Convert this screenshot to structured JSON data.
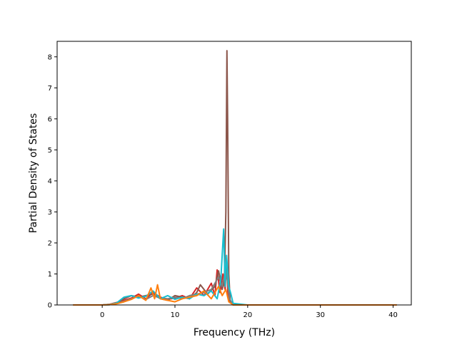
{
  "chart_data": {
    "type": "line",
    "title": "",
    "xlabel": "Frequency (THz)",
    "ylabel": "Partial Density of States",
    "xlim": [
      -6.2,
      42.5
    ],
    "ylim": [
      0,
      8.5
    ],
    "xticks": [
      0,
      10,
      20,
      30,
      40
    ],
    "yticks": [
      0,
      1,
      2,
      3,
      4,
      5,
      6,
      7,
      8
    ],
    "grid": false,
    "legend": "none",
    "series": [
      {
        "color": "#d62728",
        "x": [
          -4.0,
          0.0,
          1.0,
          2.0,
          3.0,
          4.0,
          5.0,
          6.0,
          7.0,
          8.0,
          9.0,
          10.0,
          11.0,
          12.0,
          13.0,
          14.0,
          15.0,
          15.5,
          15.8,
          16.2,
          16.6,
          16.9,
          17.1,
          17.3,
          17.6,
          18.0,
          20.0,
          30.0,
          40.5
        ],
        "y": [
          0,
          0,
          0.02,
          0.08,
          0.15,
          0.22,
          0.35,
          0.2,
          0.4,
          0.25,
          0.18,
          0.22,
          0.3,
          0.2,
          0.55,
          0.3,
          0.7,
          0.3,
          1.13,
          0.4,
          1.0,
          0.5,
          1.5,
          0.3,
          0.1,
          0,
          0,
          0,
          0
        ]
      },
      {
        "color": "#8c564b",
        "x": [
          -4.0,
          0.0,
          1.0,
          2.0,
          3.0,
          4.0,
          5.0,
          6.0,
          7.0,
          8.0,
          9.0,
          10.0,
          11.0,
          12.0,
          13.0,
          13.5,
          14.5,
          15.5,
          16.0,
          16.5,
          16.8,
          17.0,
          17.15,
          17.25,
          17.4,
          17.6,
          18.0,
          20.0,
          30.0,
          40.5
        ],
        "y": [
          0,
          0,
          0.01,
          0.06,
          0.2,
          0.3,
          0.25,
          0.3,
          0.35,
          0.2,
          0.15,
          0.3,
          0.25,
          0.2,
          0.4,
          0.65,
          0.35,
          0.6,
          1.1,
          0.5,
          0.8,
          3.0,
          8.2,
          6.0,
          1.0,
          0.1,
          0,
          0,
          0,
          0
        ]
      },
      {
        "color": "#7f7f7f",
        "x": [
          -4.0,
          0.0,
          1.0,
          2.0,
          3.0,
          4.0,
          5.0,
          6.0,
          7.0,
          8.0,
          9.0,
          10.0,
          11.0,
          12.0,
          13.0,
          14.0,
          15.0,
          16.0,
          16.5,
          17.0,
          17.2,
          17.5,
          18.0,
          20.0,
          30.0,
          40.5
        ],
        "y": [
          0,
          0,
          0.02,
          0.05,
          0.12,
          0.2,
          0.28,
          0.18,
          0.3,
          0.22,
          0.2,
          0.25,
          0.2,
          0.3,
          0.35,
          0.4,
          0.5,
          0.9,
          0.6,
          1.2,
          0.8,
          0.2,
          0,
          0,
          0,
          0
        ]
      },
      {
        "color": "#17becf",
        "x": [
          -4.0,
          0.0,
          1.0,
          2.0,
          3.0,
          4.0,
          5.0,
          6.0,
          7.0,
          8.0,
          9.0,
          10.0,
          11.0,
          12.0,
          13.0,
          14.0,
          15.0,
          15.8,
          16.3,
          16.7,
          16.9,
          17.1,
          17.4,
          17.7,
          18.0,
          20.0,
          30.0,
          40.5
        ],
        "y": [
          0,
          0,
          0.01,
          0.07,
          0.25,
          0.3,
          0.22,
          0.28,
          0.45,
          0.2,
          0.3,
          0.18,
          0.25,
          0.2,
          0.35,
          0.3,
          0.45,
          0.2,
          0.8,
          2.45,
          0.6,
          1.6,
          0.6,
          0.35,
          0.05,
          0,
          0,
          0
        ]
      },
      {
        "color": "#ff7f0e",
        "x": [
          -4.0,
          0.0,
          1.0,
          2.0,
          3.0,
          4.0,
          5.0,
          6.0,
          6.7,
          7.2,
          7.6,
          8.0,
          9.0,
          10.0,
          11.0,
          12.0,
          13.0,
          14.0,
          15.0,
          16.0,
          16.5,
          17.0,
          17.4,
          18.0,
          20.0,
          30.0,
          40.5
        ],
        "y": [
          0,
          0,
          0.01,
          0.04,
          0.1,
          0.18,
          0.3,
          0.15,
          0.55,
          0.2,
          0.65,
          0.2,
          0.15,
          0.1,
          0.2,
          0.25,
          0.3,
          0.45,
          0.2,
          0.6,
          0.3,
          0.5,
          0.1,
          0,
          0,
          0,
          0
        ]
      }
    ]
  }
}
